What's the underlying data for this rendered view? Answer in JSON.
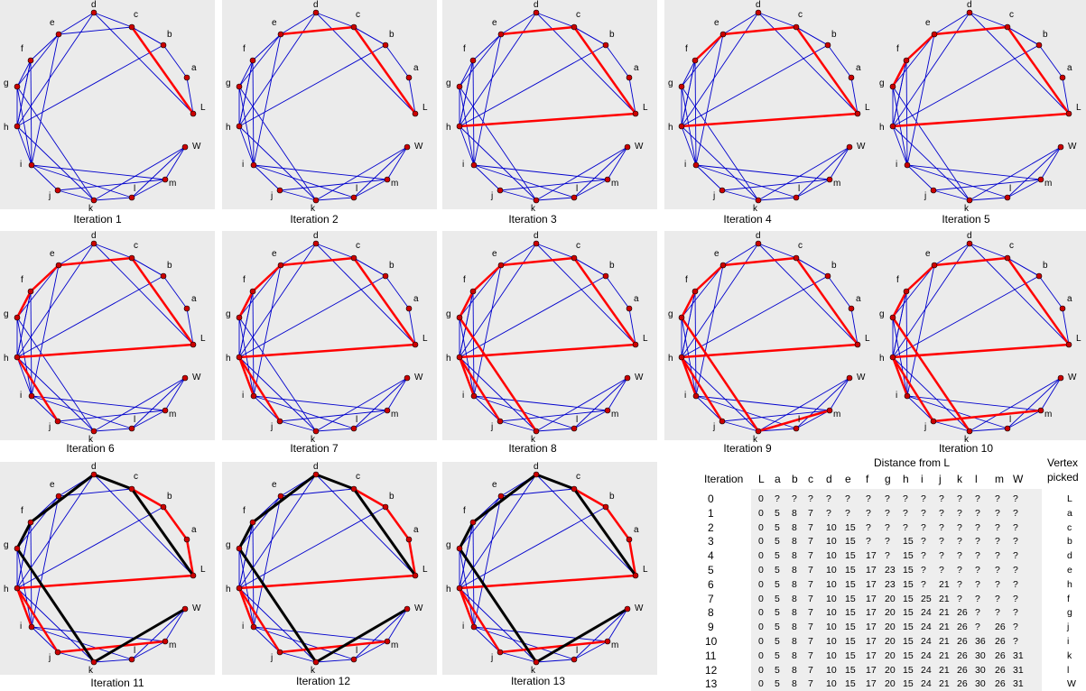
{
  "iterations": [
    {
      "caption": "Iteration 1",
      "red": [
        [
          "L",
          "c"
        ]
      ],
      "black": []
    },
    {
      "caption": "Iteration 2",
      "red": [
        [
          "L",
          "c"
        ],
        [
          "c",
          "e"
        ]
      ],
      "black": []
    },
    {
      "caption": "Iteration 3",
      "red": [
        [
          "L",
          "c"
        ],
        [
          "c",
          "e"
        ],
        [
          "L",
          "h"
        ]
      ],
      "black": []
    },
    {
      "caption": "Iteration 4",
      "red": [
        [
          "L",
          "c"
        ],
        [
          "c",
          "e"
        ],
        [
          "L",
          "h"
        ],
        [
          "e",
          "f"
        ]
      ],
      "black": []
    },
    {
      "caption": "Iteration 5",
      "red": [
        [
          "L",
          "c"
        ],
        [
          "c",
          "e"
        ],
        [
          "L",
          "h"
        ],
        [
          "e",
          "f"
        ],
        [
          "f",
          "g"
        ]
      ],
      "black": []
    },
    {
      "caption": "Iteration 6",
      "red": [
        [
          "L",
          "c"
        ],
        [
          "c",
          "e"
        ],
        [
          "L",
          "h"
        ],
        [
          "e",
          "f"
        ],
        [
          "f",
          "g"
        ],
        [
          "h",
          "j"
        ]
      ],
      "black": []
    },
    {
      "caption": "Iteration 7",
      "red": [
        [
          "L",
          "c"
        ],
        [
          "c",
          "e"
        ],
        [
          "L",
          "h"
        ],
        [
          "e",
          "f"
        ],
        [
          "f",
          "g"
        ],
        [
          "h",
          "j"
        ],
        [
          "h",
          "i"
        ]
      ],
      "black": []
    },
    {
      "caption": "Iteration 8",
      "red": [
        [
          "L",
          "c"
        ],
        [
          "c",
          "e"
        ],
        [
          "L",
          "h"
        ],
        [
          "e",
          "f"
        ],
        [
          "f",
          "g"
        ],
        [
          "h",
          "j"
        ],
        [
          "h",
          "i"
        ],
        [
          "g",
          "k"
        ]
      ],
      "black": []
    },
    {
      "caption": "Iteration 9",
      "red": [
        [
          "L",
          "c"
        ],
        [
          "c",
          "e"
        ],
        [
          "L",
          "h"
        ],
        [
          "e",
          "f"
        ],
        [
          "f",
          "g"
        ],
        [
          "h",
          "j"
        ],
        [
          "h",
          "i"
        ],
        [
          "g",
          "k"
        ],
        [
          "k",
          "m"
        ]
      ],
      "black": []
    },
    {
      "caption": "Iteration 10",
      "red": [
        [
          "L",
          "c"
        ],
        [
          "c",
          "e"
        ],
        [
          "L",
          "h"
        ],
        [
          "e",
          "f"
        ],
        [
          "f",
          "g"
        ],
        [
          "h",
          "j"
        ],
        [
          "h",
          "i"
        ],
        [
          "g",
          "k"
        ],
        [
          "j",
          "m"
        ]
      ],
      "black": []
    },
    {
      "caption": "Iteration 11",
      "red": [
        [
          "L",
          "a"
        ],
        [
          "a",
          "b"
        ],
        [
          "b",
          "c"
        ],
        [
          "L",
          "h"
        ],
        [
          "h",
          "i"
        ],
        [
          "h",
          "j"
        ],
        [
          "j",
          "m"
        ]
      ],
      "black": [
        [
          "L",
          "c"
        ],
        [
          "c",
          "d"
        ],
        [
          "d",
          "f"
        ],
        [
          "f",
          "g"
        ],
        [
          "g",
          "k"
        ],
        [
          "k",
          "W"
        ]
      ]
    },
    {
      "caption": "Iteration 12",
      "red": [
        [
          "L",
          "a"
        ],
        [
          "a",
          "b"
        ],
        [
          "b",
          "c"
        ],
        [
          "L",
          "h"
        ],
        [
          "h",
          "i"
        ],
        [
          "h",
          "j"
        ],
        [
          "j",
          "m"
        ]
      ],
      "black": [
        [
          "L",
          "c"
        ],
        [
          "c",
          "d"
        ],
        [
          "d",
          "f"
        ],
        [
          "f",
          "g"
        ],
        [
          "g",
          "k"
        ],
        [
          "k",
          "W"
        ]
      ]
    },
    {
      "caption": "Iteration 13",
      "red": [
        [
          "L",
          "a"
        ],
        [
          "a",
          "b"
        ],
        [
          "b",
          "c"
        ],
        [
          "L",
          "h"
        ],
        [
          "h",
          "i"
        ],
        [
          "h",
          "j"
        ],
        [
          "j",
          "m"
        ]
      ],
      "black": [
        [
          "L",
          "c"
        ],
        [
          "c",
          "d"
        ],
        [
          "d",
          "f"
        ],
        [
          "f",
          "g"
        ],
        [
          "g",
          "k"
        ],
        [
          "k",
          "W"
        ]
      ]
    }
  ],
  "nodes": [
    "a",
    "b",
    "c",
    "d",
    "e",
    "f",
    "g",
    "h",
    "i",
    "j",
    "k",
    "l",
    "m",
    "W",
    "L"
  ],
  "colors": {
    "blue": "#0000cc",
    "red": "#ff0000",
    "black": "#000000",
    "node": "#cc0000",
    "panel": "#ebebeb"
  },
  "table": {
    "title": "Distance from L",
    "iteration_header": "Iteration",
    "picked_header_1": "Vertex",
    "picked_header_2": "picked",
    "columns": [
      "L",
      "a",
      "b",
      "c",
      "d",
      "e",
      "f",
      "g",
      "h",
      "i",
      "j",
      "k",
      "l",
      "m",
      "W"
    ],
    "rows": [
      {
        "it": "0",
        "cells": [
          "0",
          "?",
          "?",
          "?",
          "?",
          "?",
          "?",
          "?",
          "?",
          "?",
          "?",
          "?",
          "?",
          "?",
          "?"
        ],
        "picked": "L"
      },
      {
        "it": "1",
        "cells": [
          "0",
          "5",
          "8",
          "7",
          "?",
          "?",
          "?",
          "?",
          "?",
          "?",
          "?",
          "?",
          "?",
          "?",
          "?"
        ],
        "picked": "a"
      },
      {
        "it": "2",
        "cells": [
          "0",
          "5",
          "8",
          "7",
          "10",
          "15",
          "?",
          "?",
          "?",
          "?",
          "?",
          "?",
          "?",
          "?",
          "?"
        ],
        "picked": "c"
      },
      {
        "it": "3",
        "cells": [
          "0",
          "5",
          "8",
          "7",
          "10",
          "15",
          "?",
          "?",
          "15",
          "?",
          "?",
          "?",
          "?",
          "?",
          "?"
        ],
        "picked": "b"
      },
      {
        "it": "4",
        "cells": [
          "0",
          "5",
          "8",
          "7",
          "10",
          "15",
          "17",
          "?",
          "15",
          "?",
          "?",
          "?",
          "?",
          "?",
          "?"
        ],
        "picked": "d"
      },
      {
        "it": "5",
        "cells": [
          "0",
          "5",
          "8",
          "7",
          "10",
          "15",
          "17",
          "23",
          "15",
          "?",
          "?",
          "?",
          "?",
          "?",
          "?"
        ],
        "picked": "e"
      },
      {
        "it": "6",
        "cells": [
          "0",
          "5",
          "8",
          "7",
          "10",
          "15",
          "17",
          "23",
          "15",
          "?",
          "21",
          "?",
          "?",
          "?",
          "?"
        ],
        "picked": "h"
      },
      {
        "it": "7",
        "cells": [
          "0",
          "5",
          "8",
          "7",
          "10",
          "15",
          "17",
          "20",
          "15",
          "25",
          "21",
          "?",
          "?",
          "?",
          "?"
        ],
        "picked": "f"
      },
      {
        "it": "8",
        "cells": [
          "0",
          "5",
          "8",
          "7",
          "10",
          "15",
          "17",
          "20",
          "15",
          "24",
          "21",
          "26",
          "?",
          "?",
          "?"
        ],
        "picked": "g"
      },
      {
        "it": "9",
        "cells": [
          "0",
          "5",
          "8",
          "7",
          "10",
          "15",
          "17",
          "20",
          "15",
          "24",
          "21",
          "26",
          "?",
          "26",
          "?"
        ],
        "picked": "j"
      },
      {
        "it": "10",
        "cells": [
          "0",
          "5",
          "8",
          "7",
          "10",
          "15",
          "17",
          "20",
          "15",
          "24",
          "21",
          "26",
          "36",
          "26",
          "?"
        ],
        "picked": "i"
      },
      {
        "it": "11",
        "cells": [
          "0",
          "5",
          "8",
          "7",
          "10",
          "15",
          "17",
          "20",
          "15",
          "24",
          "21",
          "26",
          "30",
          "26",
          "31"
        ],
        "picked": "k"
      },
      {
        "it": "12",
        "cells": [
          "0",
          "5",
          "8",
          "7",
          "10",
          "15",
          "17",
          "20",
          "15",
          "24",
          "21",
          "26",
          "30",
          "26",
          "31"
        ],
        "picked": "l"
      },
      {
        "it": "13",
        "cells": [
          "0",
          "5",
          "8",
          "7",
          "10",
          "15",
          "17",
          "20",
          "15",
          "24",
          "21",
          "26",
          "30",
          "26",
          "31"
        ],
        "picked": "W"
      }
    ]
  }
}
